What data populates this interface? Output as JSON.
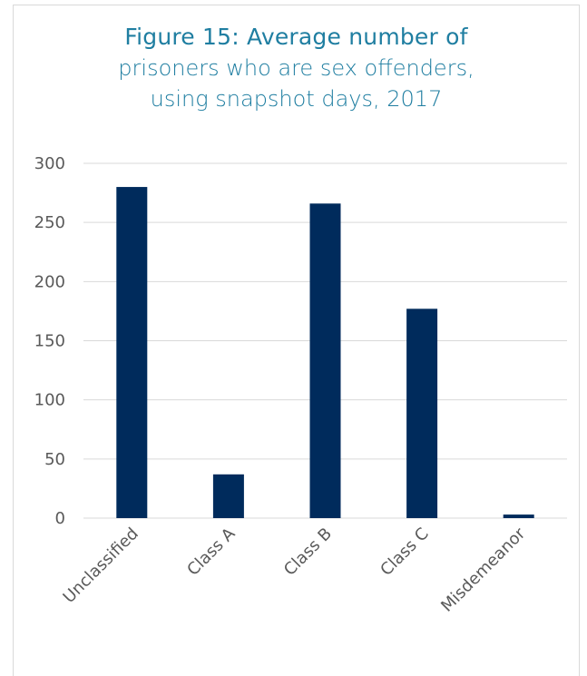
{
  "title": {
    "line1": "Figure 15: Average number of",
    "line2": "prisoners who are sex offenders,",
    "line3": "using snapshot days, 2017"
  },
  "chart_data": {
    "type": "bar",
    "categories": [
      "Unclassified",
      "Class A",
      "Class B",
      "Class C",
      "Misdemeanor"
    ],
    "values": [
      280,
      37,
      266,
      177,
      3
    ],
    "ylim": [
      0,
      300
    ],
    "yticks": [
      0,
      50,
      100,
      150,
      200,
      250,
      300
    ],
    "ytick_labels": [
      "0",
      "50",
      "100",
      "150",
      "200",
      "250",
      "300"
    ],
    "xlabel": "",
    "ylabel": "",
    "grid": true,
    "legend": "none",
    "colors": {
      "bar": "#002b5c",
      "grid": "#d9d9d9",
      "title": "#1f7ea1",
      "tick_text": "#595959"
    }
  }
}
